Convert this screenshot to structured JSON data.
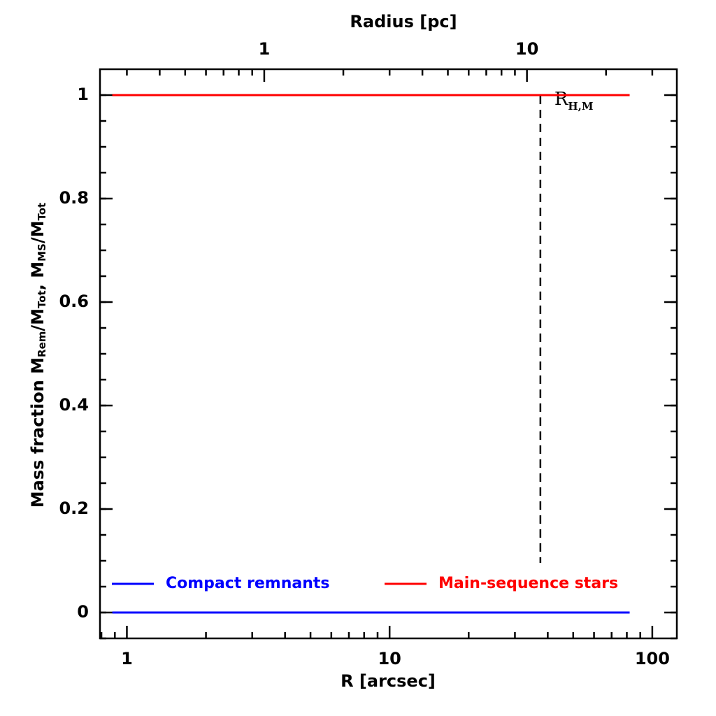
{
  "chart_data": {
    "type": "line",
    "xlabel": "R [arcsec]",
    "x2label": "Radius [pc]",
    "ylabel_parts": [
      {
        "text": "Mass fraction  M"
      },
      {
        "text": "Rem",
        "sub": true
      },
      {
        "text": "/M"
      },
      {
        "text": "Tot",
        "sub": true
      },
      {
        "text": ",  M"
      },
      {
        "text": "MS",
        "sub": true
      },
      {
        "text": "/M"
      },
      {
        "text": "Tot",
        "sub": true
      }
    ],
    "xscale": "log",
    "xlim": [
      0.79,
      124
    ],
    "xticks": [
      1,
      10,
      100
    ],
    "x2lim": [
      0.237,
      37.2
    ],
    "x2ticks": [
      1,
      10
    ],
    "ylim": [
      -0.05,
      1.05
    ],
    "yticks": [
      0,
      0.2,
      0.4,
      0.6,
      0.8,
      1
    ],
    "minor_ticks": true,
    "legend": "lower",
    "series": [
      {
        "name": "Compact remnants",
        "color": "#0000ff",
        "x": [
          0.88,
          82
        ],
        "values": [
          0,
          0
        ]
      },
      {
        "name": "Main-sequence stars",
        "color": "#ff0000",
        "x": [
          0.88,
          82
        ],
        "values": [
          1,
          1
        ]
      }
    ],
    "vline": {
      "x": 37.5,
      "label": "R",
      "label_sub": "H,M"
    }
  }
}
